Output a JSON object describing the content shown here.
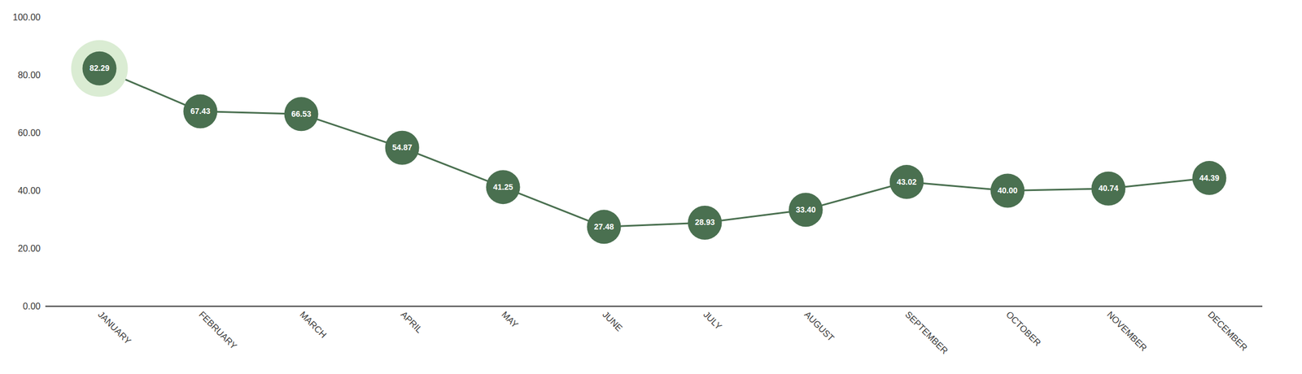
{
  "chart_data": {
    "type": "line",
    "categories": [
      "JANUARY",
      "FEBRUARY",
      "MARCH",
      "APRIL",
      "MAY",
      "JUNE",
      "JULY",
      "AUGUST",
      "SEPTEMBER",
      "OCTOBER",
      "NOVEMBER",
      "DECEMBER"
    ],
    "values": [
      82.29,
      67.43,
      66.53,
      54.87,
      41.25,
      27.48,
      28.93,
      33.4,
      43.02,
      40.0,
      40.74,
      44.39
    ],
    "value_labels": [
      "82.29",
      "67.43",
      "66.53",
      "54.87",
      "41.25",
      "27.48",
      "28.93",
      "33.40",
      "43.02",
      "40.00",
      "40.74",
      "44.39"
    ],
    "color": "#4a7050",
    "marker": "circle",
    "ylim": [
      0,
      100
    ],
    "yticks": [
      {
        "value": 0,
        "label": "0.00"
      },
      {
        "value": 20,
        "label": "20.00"
      },
      {
        "value": 40,
        "label": "40.00"
      },
      {
        "value": 60,
        "label": "60.00"
      },
      {
        "value": 80,
        "label": "80.00"
      },
      {
        "value": 100,
        "label": "100.00"
      }
    ],
    "grid": false,
    "data_labels": true
  }
}
